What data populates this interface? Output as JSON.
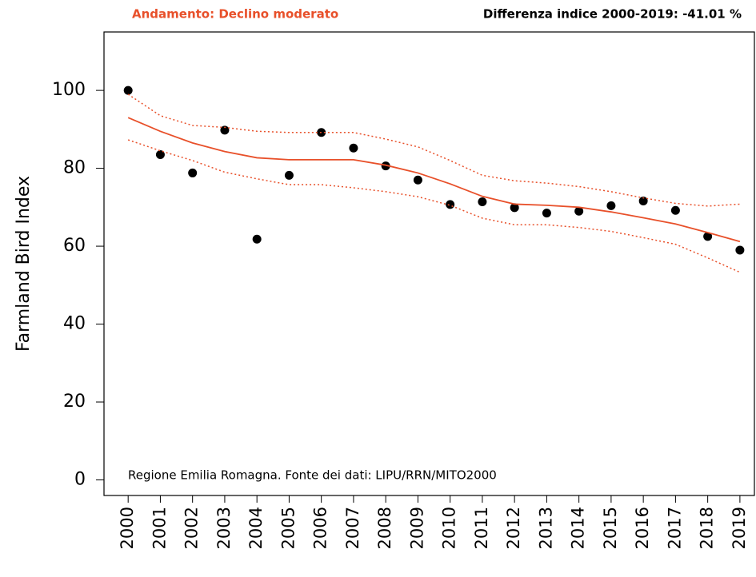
{
  "chart_data": {
    "type": "scatter",
    "title_left": "Andamento:  Declino moderato",
    "title_right": "Differenza indice 2000-2019: -41.01 %",
    "ylabel": "Farmland Bird Index",
    "annotation": "Regione Emilia Romagna. Fonte dei dati: LIPU/RRN/MITO2000",
    "x": [
      2000,
      2001,
      2002,
      2003,
      2004,
      2005,
      2006,
      2007,
      2008,
      2009,
      2010,
      2011,
      2012,
      2013,
      2014,
      2015,
      2016,
      2017,
      2018,
      2019
    ],
    "series": [
      {
        "style": "points",
        "color": "#000000",
        "values": [
          100,
          83.5,
          78.8,
          89.8,
          61.8,
          78.2,
          89.2,
          85.2,
          80.6,
          77,
          70.7,
          71.4,
          69.9,
          68.5,
          69,
          70.4,
          71.6,
          69.2,
          62.5,
          59
        ]
      },
      {
        "style": "solid",
        "color": "#e8502a",
        "values": [
          93,
          89.5,
          86.5,
          84.3,
          82.7,
          82.2,
          82.2,
          82.2,
          80.8,
          78.8,
          76,
          72.8,
          70.8,
          70.5,
          70,
          68.8,
          67.3,
          65.7,
          63.5,
          61.2
        ]
      },
      {
        "style": "dotted",
        "color": "#e8502a",
        "values": [
          99,
          93.5,
          91,
          90.5,
          89.5,
          89.2,
          89.2,
          89.2,
          87.5,
          85.5,
          82,
          78.2,
          76.8,
          76.2,
          75.3,
          74,
          72.4,
          71,
          70.3,
          70.8
        ]
      },
      {
        "style": "dotted",
        "color": "#e8502a",
        "values": [
          87.3,
          84.5,
          82,
          79,
          77.3,
          75.8,
          75.8,
          75,
          74,
          72.7,
          70.5,
          67.2,
          65.5,
          65.5,
          64.8,
          63.8,
          62.2,
          60.5,
          57,
          53.3
        ]
      }
    ],
    "xlim": [
      1999.25,
      2019.45
    ],
    "ylim": [
      -4,
      115
    ],
    "xticks": [
      2000,
      2001,
      2002,
      2003,
      2004,
      2005,
      2006,
      2007,
      2008,
      2009,
      2010,
      2011,
      2012,
      2013,
      2014,
      2015,
      2016,
      2017,
      2018,
      2019
    ],
    "yticks": [
      0,
      20,
      40,
      60,
      80,
      100
    ]
  }
}
